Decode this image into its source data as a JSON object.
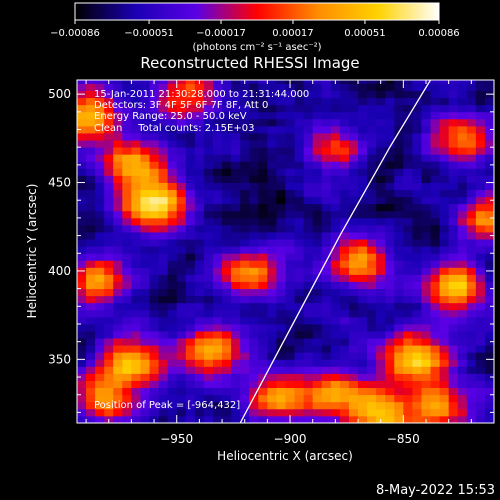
{
  "chart_data": {
    "type": "heatmap",
    "title": "Reconstructed RHESSI Image",
    "xlabel": "Heliocentric X (arcsec)",
    "ylabel": "Heliocentric Y (arcsec)",
    "xlim": [
      -994,
      -810
    ],
    "ylim": [
      314,
      508
    ],
    "x_ticks": [
      -950,
      -900,
      -850
    ],
    "y_ticks": [
      350,
      400,
      450,
      500
    ],
    "x_tick_labels": [
      "−950",
      "−900",
      "−850"
    ],
    "y_tick_labels": [
      "350",
      "400",
      "450",
      "500"
    ],
    "colorbar": {
      "range": [
        -0.00086,
        0.00086
      ],
      "ticks": [
        -0.00086,
        -0.00051,
        -0.00017,
        0.00017,
        0.00051,
        0.00086
      ],
      "tick_labels": [
        "−0.00086",
        "−0.00051",
        "−0.00017",
        "0.00017",
        "0.00051",
        "0.00086"
      ],
      "unit_label": "(photons cm⁻² s⁻¹ asec⁻²)",
      "colors": [
        "#000000",
        "#1a00b4",
        "#5a00e6",
        "#ff0000",
        "#ff8c00",
        "#ffd200",
        "#ffffff"
      ]
    },
    "annotations": [
      "15-Jan-2011 21:30:28.000 to 21:31:44.000",
      "Detectors: 3F 4F 5F 6F 7F 8F, Att 0",
      "Energy Range: 25.0 - 50.0 keV",
      "Clean     Total counts: 2.15E+03"
    ],
    "peak_label": "Position of Peak = [-964,432]",
    "peak": [
      -964,
      432
    ],
    "limb_points": [
      [
        -922,
        314
      ],
      [
        -900,
        367
      ],
      [
        -878,
        420
      ],
      [
        -856,
        470
      ],
      [
        -838,
        508
      ]
    ],
    "sources": [
      {
        "x": -960,
        "y": 438,
        "amp": 0.00086
      },
      {
        "x": -969,
        "y": 460,
        "amp": 0.00051
      },
      {
        "x": -989,
        "y": 488,
        "amp": 0.00055
      },
      {
        "x": -870,
        "y": 405,
        "amp": 0.00045
      },
      {
        "x": -845,
        "y": 350,
        "amp": 0.00075
      },
      {
        "x": -828,
        "y": 390,
        "amp": 0.00055
      },
      {
        "x": -812,
        "y": 430,
        "amp": 0.0004
      },
      {
        "x": -825,
        "y": 475,
        "amp": 0.0003
      },
      {
        "x": -935,
        "y": 355,
        "amp": 0.0005
      },
      {
        "x": -968,
        "y": 350,
        "amp": 0.00045
      },
      {
        "x": -918,
        "y": 400,
        "amp": 0.00035
      },
      {
        "x": -945,
        "y": 500,
        "amp": 0.00035
      },
      {
        "x": -905,
        "y": 330,
        "amp": 0.0004
      },
      {
        "x": -880,
        "y": 330,
        "amp": 0.00035
      },
      {
        "x": -860,
        "y": 318,
        "amp": 0.0005
      },
      {
        "x": -985,
        "y": 395,
        "amp": 0.0004
      },
      {
        "x": -982,
        "y": 330,
        "amp": 0.0004
      },
      {
        "x": -835,
        "y": 323,
        "amp": 0.0004
      },
      {
        "x": -880,
        "y": 470,
        "amp": 0.00015
      }
    ],
    "background": -0.00065
  },
  "footer": {
    "date": "8-May-2022 15:53"
  }
}
